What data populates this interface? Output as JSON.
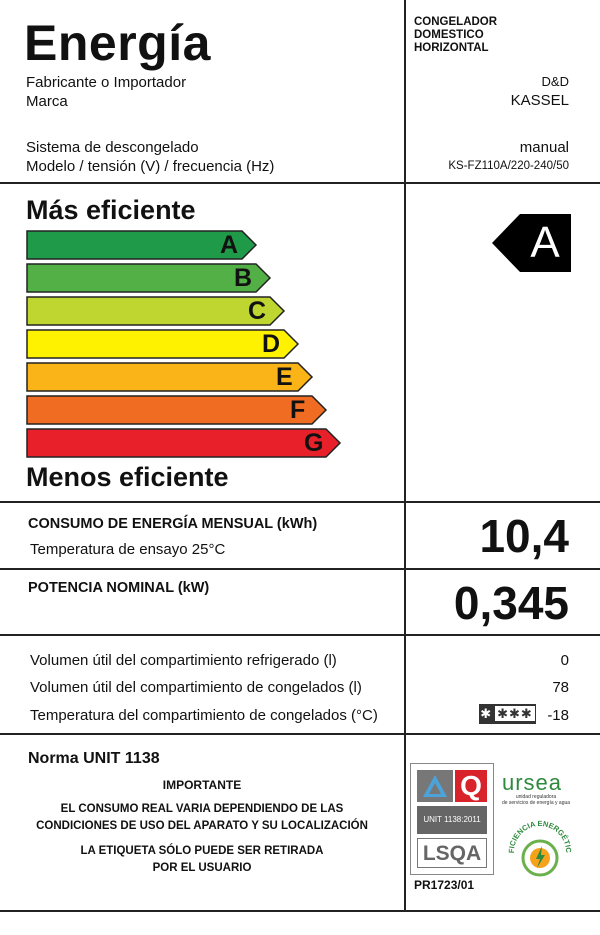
{
  "header": {
    "title": "Energía",
    "manufacturer_label": "Fabricante o Importador",
    "brand_label": "Marca",
    "product_type_lines": [
      "CONGELADOR",
      "DOMESTICO",
      "HORIZONTAL"
    ],
    "manufacturer_value": "D&D",
    "brand_value": "KASSEL"
  },
  "specs": {
    "defrost_label": "Sistema de descongelado",
    "defrost_value": "manual",
    "model_label": "Modelo / tensión (V) / frecuencia (Hz)",
    "model_value": "KS-FZ110A/220-240/50"
  },
  "efficiency": {
    "more_label": "Más eficiente",
    "less_label": "Menos eficiente",
    "rating": "A",
    "classes": [
      {
        "letter": "A",
        "color": "#1f9a48"
      },
      {
        "letter": "B",
        "color": "#53b047"
      },
      {
        "letter": "C",
        "color": "#bfd630"
      },
      {
        "letter": "D",
        "color": "#fff200"
      },
      {
        "letter": "E",
        "color": "#fbb417"
      },
      {
        "letter": "F",
        "color": "#f06c22"
      },
      {
        "letter": "G",
        "color": "#e8202a"
      }
    ]
  },
  "consumption": {
    "label": "CONSUMO DE ENERGÍA MENSUAL (kWh)",
    "sub_label": "Temperatura de ensayo 25°C",
    "value": "10,4"
  },
  "power": {
    "label": "POTENCIA NOMINAL (kW)",
    "value": "0,345"
  },
  "volumes": [
    {
      "label": "Volumen útil del compartimiento refrigerado (l)",
      "value": "0"
    },
    {
      "label": "Volumen útil del compartimiento de congelados (l)",
      "value": "78"
    },
    {
      "label": "Temperatura del compartimiento de congelados (°C)",
      "value": "-18"
    }
  ],
  "freezer_stars": {
    "left": "✱",
    "right": "✱✱✱"
  },
  "footer": {
    "norm": "Norma UNIT 1138",
    "important": "IMPORTANTE",
    "note1_line1": "EL CONSUMO REAL VARIA DEPENDIENDO DE LAS",
    "note1_line2": "CONDICIONES DE USO DEL APARATO Y SU LOCALIZACIÓN",
    "note2_line1": "LA ETIQUETA SÓLO PUEDE SER RETIRADA",
    "note2_line2": "POR EL USUARIO",
    "cert_code": "PR1723/01",
    "lsqa_unit": "UNIT 1138:2011",
    "lsqa_name": "LSQA",
    "ursea_name": "ursea",
    "ursea_sub1": "unidad reguladora",
    "ursea_sub2": "de servicios de energía y agua",
    "ursea_badge": "EFICIENCIA ENERGÉTICA"
  }
}
